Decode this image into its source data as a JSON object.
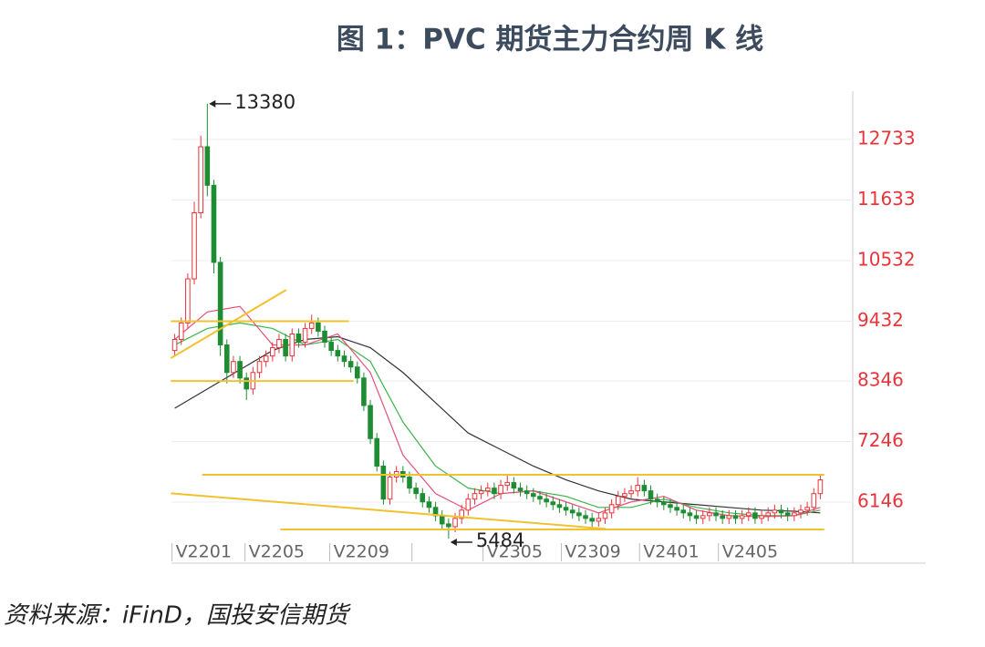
{
  "chart_data": {
    "type": "candlestick",
    "title": "图 1：PVC 期货主力合约周 K 线",
    "source": "资料来源：iFinD，国投安信期货",
    "ylim": [
      5037,
      13610
    ],
    "yticks": [
      6146,
      7246,
      8346,
      9432,
      10532,
      11633,
      12733
    ],
    "grid": true,
    "up_color": "#e8343a",
    "down_color": "#1e8c32",
    "x_labels": [
      {
        "label": "V2201",
        "index": 0
      },
      {
        "label": "V2205",
        "index": 11.2
      },
      {
        "label": "V2209",
        "index": 24.2
      },
      {
        "label": null,
        "index": 36.8
      },
      {
        "label": "V2305",
        "index": 47.7
      },
      {
        "label": "V2309",
        "index": 59.7
      },
      {
        "label": "V2401",
        "index": 71.7
      },
      {
        "label": "V2405",
        "index": 83.8
      }
    ],
    "open": [
      8900,
      9100,
      9400,
      10200,
      11400,
      12600,
      11900,
      10500,
      9000,
      8500,
      8700,
      8400,
      8200,
      8500,
      8700,
      8800,
      8950,
      9100,
      8800,
      9200,
      9050,
      9300,
      9400,
      9250,
      9050,
      8900,
      8800,
      8700,
      8600,
      8400,
      7900,
      7300,
      6800,
      6200,
      6600,
      6700,
      6600,
      6400,
      6300,
      6150,
      6050,
      5900,
      5750,
      5700,
      5850,
      6000,
      6200,
      6300,
      6350,
      6400,
      6300,
      6450,
      6500,
      6400,
      6350,
      6300,
      6250,
      6200,
      6150,
      6100,
      6050,
      6000,
      5950,
      5900,
      5850,
      5800,
      5850,
      5950,
      6100,
      6250,
      6300,
      6350,
      6450,
      6350,
      6200,
      6150,
      6100,
      6050,
      6000,
      5950,
      5900,
      5850,
      5900,
      5950,
      5900,
      5850,
      5900,
      5850,
      5900,
      5950,
      5850,
      5900,
      5950,
      6000,
      5950,
      5900,
      5950,
      6000,
      6050,
      6300
    ],
    "close": [
      9100,
      9400,
      10200,
      11400,
      12600,
      11900,
      10500,
      9000,
      8500,
      8700,
      8400,
      8200,
      8500,
      8700,
      8800,
      8950,
      9100,
      8800,
      9200,
      9050,
      9300,
      9400,
      9250,
      9050,
      8900,
      8800,
      8700,
      8600,
      8400,
      7900,
      7300,
      6800,
      6200,
      6600,
      6700,
      6600,
      6400,
      6300,
      6150,
      6050,
      5900,
      5750,
      5700,
      5850,
      6000,
      6200,
      6300,
      6350,
      6400,
      6300,
      6450,
      6500,
      6400,
      6350,
      6300,
      6250,
      6200,
      6150,
      6100,
      6050,
      6000,
      5950,
      5900,
      5850,
      5800,
      5850,
      5950,
      6100,
      6250,
      6300,
      6350,
      6450,
      6350,
      6200,
      6150,
      6100,
      6050,
      6000,
      5950,
      5900,
      5850,
      5900,
      5950,
      5900,
      5850,
      5900,
      5850,
      5900,
      5950,
      5850,
      5900,
      5950,
      6000,
      5950,
      5900,
      5950,
      6000,
      6050,
      6300,
      6550
    ],
    "high": [
      9200,
      9500,
      10300,
      11600,
      12800,
      13380,
      12000,
      10600,
      9100,
      8800,
      8800,
      8500,
      8600,
      8800,
      8900,
      9050,
      9200,
      9200,
      9300,
      9300,
      9400,
      9550,
      9500,
      9350,
      9150,
      9000,
      8900,
      8800,
      8700,
      8500,
      8000,
      7400,
      6900,
      6700,
      6800,
      6800,
      6700,
      6500,
      6400,
      6250,
      6150,
      6000,
      5850,
      5950,
      6100,
      6300,
      6400,
      6450,
      6500,
      6500,
      6550,
      6650,
      6600,
      6500,
      6450,
      6400,
      6350,
      6300,
      6250,
      6200,
      6150,
      6100,
      6050,
      6000,
      5950,
      5950,
      6050,
      6200,
      6350,
      6400,
      6450,
      6600,
      6550,
      6450,
      6300,
      6250,
      6200,
      6150,
      6100,
      6050,
      6000,
      6000,
      6050,
      6050,
      6000,
      6000,
      6000,
      6000,
      6050,
      6050,
      6000,
      6050,
      6100,
      6100,
      6050,
      6050,
      6100,
      6150,
      6400,
      6650
    ],
    "low": [
      8800,
      9000,
      9300,
      10100,
      11300,
      11700,
      10300,
      8800,
      8300,
      8400,
      8300,
      8000,
      8100,
      8400,
      8600,
      8700,
      8850,
      8700,
      8700,
      8950,
      8950,
      9200,
      9150,
      8950,
      8800,
      8700,
      8600,
      8500,
      8300,
      7800,
      7200,
      6700,
      6100,
      6100,
      6500,
      6500,
      6300,
      6200,
      6050,
      5950,
      5800,
      5650,
      5484,
      5600,
      5750,
      5900,
      6100,
      6200,
      6250,
      6200,
      6200,
      6350,
      6300,
      6250,
      6200,
      6150,
      6100,
      6050,
      6000,
      5950,
      5900,
      5850,
      5800,
      5750,
      5700,
      5700,
      5750,
      5850,
      6000,
      6150,
      6200,
      6250,
      6250,
      6100,
      6050,
      6000,
      5950,
      5900,
      5850,
      5800,
      5750,
      5750,
      5800,
      5800,
      5750,
      5750,
      5750,
      5750,
      5800,
      5750,
      5750,
      5800,
      5850,
      5850,
      5800,
      5800,
      5850,
      5900,
      5950,
      6200
    ],
    "ma_x": [
      0,
      5,
      10,
      15,
      20,
      25,
      30,
      35,
      40,
      45,
      50,
      55,
      60,
      65,
      70,
      75,
      80,
      85,
      90,
      95,
      99
    ],
    "series": [
      {
        "color": "#333333",
        "values": [
          7850,
          8200,
          8550,
          8900,
          9100,
          9150,
          8950,
          8500,
          7950,
          7400,
          7100,
          6800,
          6550,
          6350,
          6200,
          6150,
          6100,
          6050,
          6000,
          5980,
          5950
        ]
      },
      {
        "color": "#3cb44b",
        "values": [
          9000,
          9300,
          9400,
          9300,
          9000,
          9100,
          8700,
          7600,
          6800,
          6400,
          6300,
          6350,
          6250,
          6050,
          6050,
          6200,
          6050,
          5950,
          5900,
          5900,
          6000
        ]
      },
      {
        "color": "#e6507a",
        "values": [
          9100,
          9600,
          9700,
          9000,
          9000,
          9200,
          8500,
          7000,
          6300,
          6000,
          6300,
          6350,
          6150,
          5950,
          6150,
          6250,
          6000,
          5900,
          5880,
          5900,
          6050
        ]
      }
    ],
    "trend_lines": [
      {
        "x": [
          -0.6,
          26.7
        ],
        "values": [
          9432,
          9432
        ]
      },
      {
        "x": [
          -0.6,
          27.4
        ],
        "values": [
          8346,
          8346
        ]
      },
      {
        "x": [
          4.2,
          99.6
        ],
        "values": [
          6643,
          6643
        ]
      },
      {
        "x": [
          16.2,
          99.6
        ],
        "values": [
          5650,
          5650
        ]
      },
      {
        "x": [
          -0.6,
          17.1
        ],
        "values": [
          8760,
          10000
        ]
      },
      {
        "x": [
          -0.6,
          66.1
        ],
        "values": [
          6306,
          5660
        ]
      }
    ],
    "trend_color": "#f2c12e"
  }
}
